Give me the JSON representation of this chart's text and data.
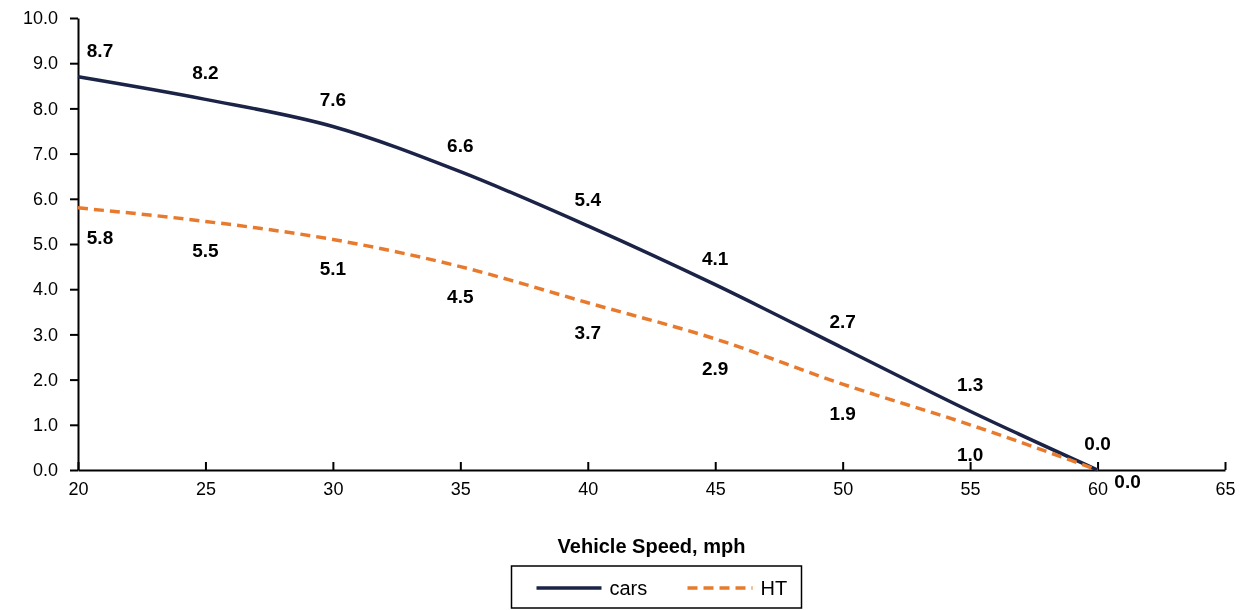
{
  "chart_data": {
    "type": "line",
    "xlabel": "Vehicle Speed, mph",
    "x": [
      20,
      25,
      30,
      35,
      40,
      45,
      50,
      55,
      60
    ],
    "series": [
      {
        "name": "cars",
        "color": "#1b2347",
        "line_style": "solid",
        "values": [
          8.7,
          8.2,
          7.6,
          6.6,
          5.4,
          4.1,
          2.7,
          1.3,
          0
        ],
        "value_labels": [
          "8.7",
          "8.2",
          "7.6",
          "6.6",
          "5.4",
          "4.1",
          "2.7",
          "1.3",
          "0.0"
        ]
      },
      {
        "name": "HT",
        "color": "#e87a2e",
        "line_style": "dashed",
        "values": [
          5.8,
          5.5,
          5.1,
          4.5,
          3.7,
          2.9,
          1.9,
          1.0,
          0
        ],
        "value_labels": [
          "5.8",
          "5.5",
          "5.1",
          "4.5",
          "3.7",
          "2.9",
          "1.9",
          "1.0",
          "0.0"
        ]
      }
    ],
    "xlim": [
      20,
      65
    ],
    "xticks": [
      20,
      25,
      30,
      35,
      40,
      45,
      50,
      55,
      60,
      65
    ],
    "ylim": [
      0,
      10
    ],
    "yticks": [
      {
        "value": 0,
        "label": "0.0"
      },
      {
        "value": 1,
        "label": "1.0"
      },
      {
        "value": 2,
        "label": "2.0"
      },
      {
        "value": 3,
        "label": "3.0"
      },
      {
        "value": 4,
        "label": "4.0"
      },
      {
        "value": 5,
        "label": "5.0"
      },
      {
        "value": 6,
        "label": "6.0"
      },
      {
        "value": 7,
        "label": "7.0"
      },
      {
        "value": 8,
        "label": "8.0"
      },
      {
        "value": 9,
        "label": "9.0"
      },
      {
        "value": 10,
        "label": "10.0"
      }
    ],
    "grid": false,
    "legend": "bottom",
    "marker": "none"
  }
}
